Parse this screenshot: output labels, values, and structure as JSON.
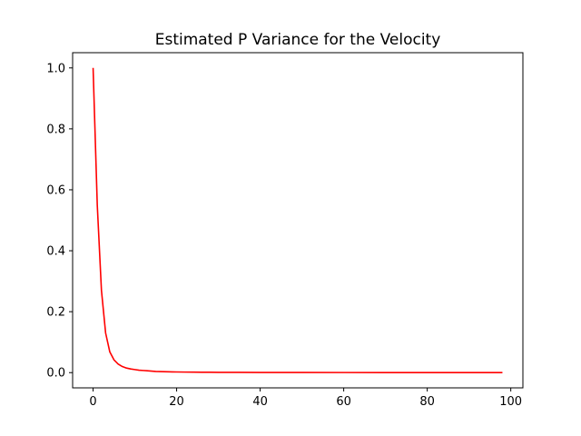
{
  "chart_data": {
    "type": "line",
    "title": "Estimated P Variance for the Velocity",
    "xlabel": "",
    "ylabel": "",
    "xlim": [
      -4.9,
      102.9
    ],
    "ylim": [
      -0.05,
      1.05
    ],
    "x_ticks": [
      0,
      20,
      40,
      60,
      80,
      100
    ],
    "y_ticks": [
      0.0,
      0.2,
      0.4,
      0.6,
      0.8,
      1.0
    ],
    "x_tick_labels": [
      "0",
      "20",
      "40",
      "60",
      "80",
      "100"
    ],
    "y_tick_labels": [
      "0.0",
      "0.2",
      "0.4",
      "0.6",
      "0.8",
      "1.0"
    ],
    "grid": false,
    "legend": "none",
    "series": [
      {
        "color": "#ff0000",
        "x": [
          0,
          1,
          2,
          3,
          4,
          5,
          6,
          7,
          8,
          9,
          10,
          11,
          12,
          13,
          14,
          15,
          16,
          17,
          18,
          19,
          20,
          22,
          24,
          26,
          28,
          30,
          35,
          40,
          50,
          60,
          70,
          80,
          90,
          98
        ],
        "y": [
          1.0,
          0.55,
          0.27,
          0.13,
          0.068,
          0.042,
          0.028,
          0.02,
          0.015,
          0.012,
          0.01,
          0.008,
          0.007,
          0.006,
          0.005,
          0.004,
          0.0035,
          0.003,
          0.0027,
          0.0024,
          0.0022,
          0.0018,
          0.0015,
          0.0013,
          0.0011,
          0.001,
          0.0008,
          0.0006,
          0.0004,
          0.0003,
          0.0002,
          0.0002,
          0.0001,
          0.0001
        ]
      }
    ]
  }
}
